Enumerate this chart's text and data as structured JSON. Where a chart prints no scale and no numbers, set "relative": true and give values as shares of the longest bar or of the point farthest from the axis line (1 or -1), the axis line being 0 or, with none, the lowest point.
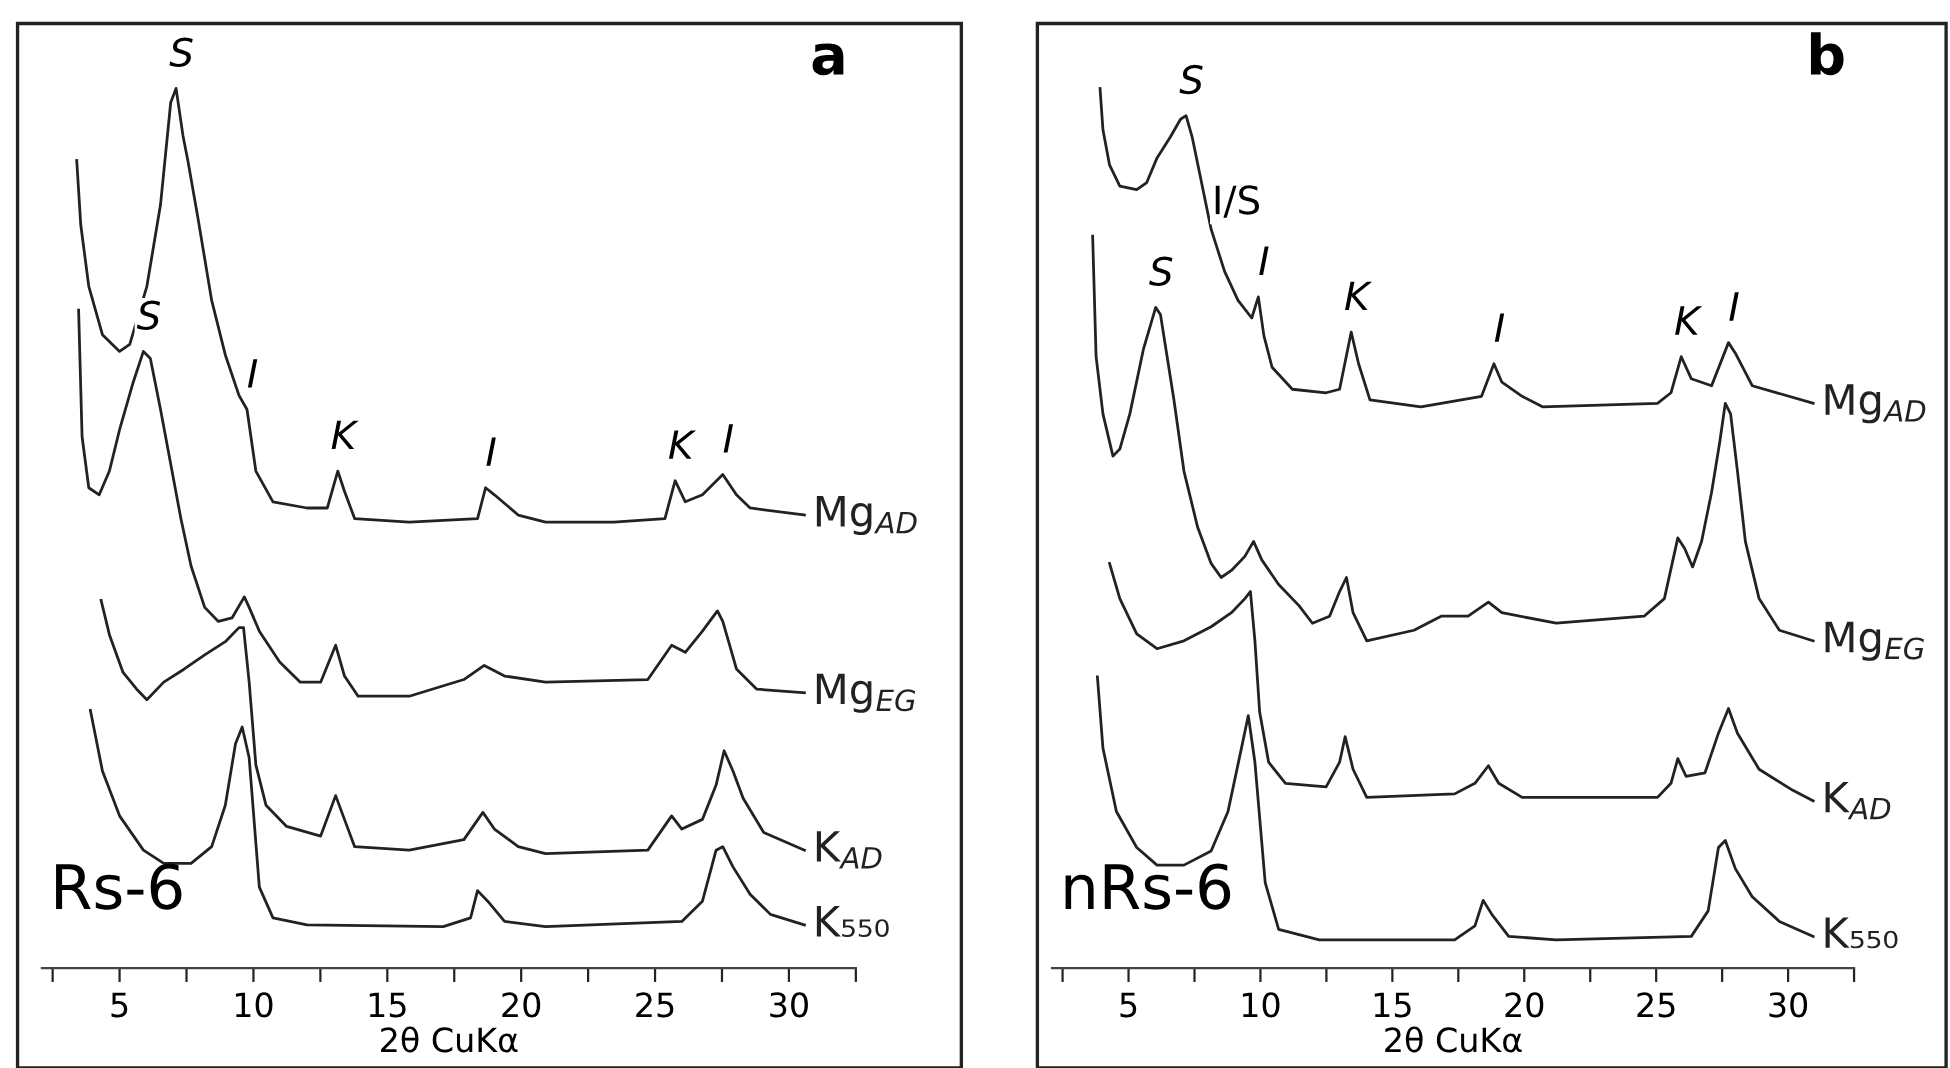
{
  "chart_data": [
    {
      "type": "line",
      "title": "a",
      "xlabel": "2θ CuKα",
      "relative": true,
      "xlim": [
        2.1,
        32.5
      ],
      "xticks": [
        {
          "value": 2.5,
          "label": null
        },
        5,
        {
          "value": 7.5,
          "label": null
        },
        10,
        {
          "value": 12.5,
          "label": null
        },
        15,
        {
          "value": 17.5,
          "label": null
        },
        20,
        {
          "value": 22.5,
          "label": null
        },
        25,
        {
          "value": 27.5,
          "label": null
        },
        30,
        {
          "value": 32.5,
          "label": null
        }
      ],
      "series": [
        {
          "name": "Mg$_{AD}$",
          "color": "#222222",
          "x": [
            3.4,
            3.55,
            3.85,
            4.36,
            5.0,
            5.38,
            6.02,
            6.53,
            6.91,
            7.11,
            7.37,
            7.55,
            7.93,
            8.44,
            8.95,
            9.46,
            9.76,
            10.09,
            10.73,
            12.0,
            12.76,
            13.15,
            13.4,
            13.78,
            15.82,
            18.37,
            18.67,
            19.0,
            19.89,
            20.91,
            23.46,
            25.37,
            25.75,
            26.13,
            26.77,
            27.53,
            28.04,
            28.55,
            30.58
          ],
          "values": [
            0.918,
            0.845,
            0.775,
            0.72,
            0.701,
            0.709,
            0.775,
            0.868,
            0.984,
            1.0,
            0.946,
            0.918,
            0.852,
            0.759,
            0.697,
            0.651,
            0.635,
            0.565,
            0.53,
            0.523,
            0.523,
            0.565,
            0.542,
            0.511,
            0.507,
            0.511,
            0.546,
            0.538,
            0.515,
            0.507,
            0.507,
            0.511,
            0.554,
            0.53,
            0.538,
            0.561,
            0.538,
            0.523,
            0.515
          ]
        },
        {
          "name": "Mg$_{EG}$",
          "color": "#222222",
          "x": [
            3.47,
            3.6,
            3.85,
            4.24,
            4.62,
            5.0,
            5.51,
            5.89,
            6.15,
            6.53,
            6.91,
            7.29,
            7.67,
            8.18,
            8.69,
            9.2,
            9.66,
            9.84,
            10.22,
            10.98,
            11.75,
            12.51,
            13.07,
            13.4,
            13.91,
            15.82,
            17.86,
            18.62,
            19.38,
            20.91,
            24.73,
            25.62,
            26.13,
            26.77,
            27.33,
            27.53,
            28.04,
            28.8,
            30.58
          ],
          "values": [
            0.748,
            0.604,
            0.546,
            0.538,
            0.565,
            0.612,
            0.666,
            0.701,
            0.693,
            0.635,
            0.573,
            0.511,
            0.457,
            0.41,
            0.394,
            0.398,
            0.422,
            0.41,
            0.383,
            0.348,
            0.325,
            0.325,
            0.367,
            0.332,
            0.309,
            0.309,
            0.328,
            0.344,
            0.332,
            0.325,
            0.328,
            0.367,
            0.359,
            0.383,
            0.406,
            0.394,
            0.34,
            0.317,
            0.313
          ]
        },
        {
          "name": "K$_{AD}$",
          "color": "#222222",
          "x": [
            4.31,
            4.62,
            5.13,
            5.64,
            6.02,
            6.65,
            7.42,
            8.18,
            8.95,
            9.46,
            9.63,
            9.84,
            10.09,
            10.47,
            11.24,
            12.51,
            13.07,
            13.4,
            13.78,
            15.82,
            17.86,
            18.57,
            19.0,
            19.89,
            20.91,
            24.73,
            25.62,
            26.0,
            26.77,
            27.28,
            27.58,
            27.91,
            28.29,
            29.06,
            30.58
          ],
          "values": [
            0.418,
            0.379,
            0.336,
            0.317,
            0.305,
            0.325,
            0.34,
            0.356,
            0.371,
            0.387,
            0.387,
            0.325,
            0.231,
            0.185,
            0.161,
            0.15,
            0.196,
            0.169,
            0.138,
            0.134,
            0.146,
            0.177,
            0.158,
            0.138,
            0.13,
            0.134,
            0.173,
            0.158,
            0.169,
            0.208,
            0.247,
            0.224,
            0.193,
            0.154,
            0.134
          ]
        },
        {
          "name": "K₅₅₀",
          "color": "#222222",
          "x": [
            3.91,
            4.36,
            5.0,
            5.89,
            6.65,
            7.67,
            8.44,
            8.95,
            9.33,
            9.58,
            9.84,
            10.22,
            10.73,
            12.0,
            17.09,
            18.11,
            18.37,
            18.75,
            19.38,
            20.91,
            26.0,
            26.77,
            27.28,
            27.53,
            27.91,
            28.55,
            29.31,
            30.58
          ],
          "values": [
            0.293,
            0.224,
            0.173,
            0.134,
            0.119,
            0.119,
            0.138,
            0.185,
            0.255,
            0.274,
            0.239,
            0.092,
            0.057,
            0.049,
            0.047,
            0.057,
            0.088,
            0.076,
            0.053,
            0.047,
            0.053,
            0.076,
            0.134,
            0.138,
            0.115,
            0.084,
            0.061,
            0.049
          ]
        }
      ],
      "annotations": [
        {
          "text": "S",
          "x": 7.11,
          "y": 1.0
        },
        {
          "text": "S",
          "x": 5.89,
          "y": 0.701
        },
        {
          "text": "I",
          "x": 9.76,
          "y": 0.635
        },
        {
          "text": "K",
          "x": 13.15,
          "y": 0.565
        },
        {
          "text": "I",
          "x": 18.67,
          "y": 0.546
        },
        {
          "text": "K",
          "x": 25.75,
          "y": 0.554
        },
        {
          "text": "I",
          "x": 27.53,
          "y": 0.561
        },
        "Rs-6"
      ]
    },
    {
      "type": "line",
      "title": "b",
      "xlabel": "2θ CuKα",
      "relative": true,
      "xlim": [
        2.1,
        32.5
      ],
      "xticks": [
        {
          "value": 2.5,
          "label": null
        },
        5,
        {
          "value": 7.5,
          "label": null
        },
        10,
        {
          "value": 12.5,
          "label": null
        },
        15,
        {
          "value": 17.5,
          "label": null
        },
        20,
        {
          "value": 22.5,
          "label": null
        },
        25,
        {
          "value": 27.5,
          "label": null
        },
        30,
        {
          "value": 32.5,
          "label": null
        }
      ],
      "series": [
        {
          "name": "Mg$_{AD}$",
          "color": "#222222",
          "x": [
            3.92,
            4.03,
            4.28,
            4.67,
            5.31,
            5.69,
            6.08,
            6.59,
            6.97,
            7.18,
            7.41,
            7.74,
            8.13,
            8.64,
            9.15,
            9.67,
            9.92,
            10.13,
            10.44,
            11.21,
            12.49,
            13.0,
            13.44,
            13.72,
            14.15,
            16.08,
            18.38,
            18.85,
            19.15,
            19.92,
            20.69,
            25.05,
            25.56,
            25.95,
            26.33,
            27.1,
            27.74,
            28.0,
            28.64,
            30.95
          ],
          "values": [
            1.0,
            0.953,
            0.913,
            0.889,
            0.885,
            0.893,
            0.921,
            0.945,
            0.965,
            0.969,
            0.945,
            0.897,
            0.84,
            0.792,
            0.759,
            0.739,
            0.763,
            0.719,
            0.683,
            0.658,
            0.654,
            0.658,
            0.723,
            0.687,
            0.646,
            0.638,
            0.65,
            0.687,
            0.666,
            0.65,
            0.638,
            0.642,
            0.654,
            0.695,
            0.67,
            0.662,
            0.711,
            0.699,
            0.662,
            0.642
          ]
        },
        {
          "name": "Mg$_{EG}$",
          "color": "#222222",
          "x": [
            3.64,
            3.77,
            4.03,
            4.41,
            4.67,
            5.05,
            5.56,
            6.03,
            6.21,
            6.72,
            7.1,
            7.62,
            8.13,
            8.51,
            8.9,
            9.41,
            9.74,
            10.05,
            10.69,
            11.46,
            11.97,
            12.62,
            13.0,
            13.26,
            13.51,
            14.03,
            15.82,
            16.85,
            17.87,
            18.64,
            19.15,
            21.21,
            24.54,
            25.31,
            25.82,
            26.08,
            26.38,
            26.72,
            27.1,
            27.41,
            27.62,
            27.82,
            28.08,
            28.38,
            28.9,
            29.67,
            30.95
          ],
          "values": [
            0.832,
            0.695,
            0.63,
            0.582,
            0.59,
            0.63,
            0.703,
            0.751,
            0.743,
            0.646,
            0.565,
            0.501,
            0.46,
            0.444,
            0.452,
            0.468,
            0.485,
            0.464,
            0.436,
            0.412,
            0.392,
            0.4,
            0.428,
            0.444,
            0.404,
            0.372,
            0.384,
            0.4,
            0.4,
            0.416,
            0.404,
            0.392,
            0.4,
            0.42,
            0.489,
            0.477,
            0.456,
            0.485,
            0.541,
            0.598,
            0.642,
            0.63,
            0.565,
            0.485,
            0.42,
            0.384,
            0.372
          ]
        },
        {
          "name": "K$_{AD}$",
          "color": "#222222",
          "x": [
            4.28,
            4.67,
            5.31,
            6.08,
            7.1,
            8.13,
            8.9,
            9.41,
            9.62,
            9.79,
            9.97,
            10.31,
            10.95,
            12.49,
            13.0,
            13.21,
            13.51,
            14.03,
            17.36,
            18.13,
            18.64,
            19.03,
            19.92,
            25.05,
            25.56,
            25.82,
            26.13,
            26.85,
            27.36,
            27.74,
            28.08,
            28.9,
            30.18,
            30.95
          ],
          "values": [
            0.46,
            0.42,
            0.38,
            0.363,
            0.372,
            0.388,
            0.404,
            0.42,
            0.428,
            0.372,
            0.291,
            0.234,
            0.21,
            0.206,
            0.234,
            0.263,
            0.226,
            0.194,
            0.198,
            0.21,
            0.23,
            0.21,
            0.194,
            0.194,
            0.21,
            0.238,
            0.218,
            0.222,
            0.267,
            0.295,
            0.267,
            0.226,
            0.202,
            0.19
          ]
        },
        {
          "name": "K₅₅₀",
          "color": "#222222",
          "x": [
            3.82,
            4.03,
            4.54,
            5.31,
            6.08,
            7.1,
            8.13,
            8.77,
            9.28,
            9.54,
            9.79,
            10.18,
            10.69,
            12.23,
            17.36,
            18.13,
            18.44,
            18.77,
            19.41,
            21.21,
            26.33,
            26.97,
            27.36,
            27.62,
            28.0,
            28.64,
            29.67,
            30.95
          ],
          "values": [
            0.331,
            0.25,
            0.178,
            0.137,
            0.117,
            0.117,
            0.133,
            0.178,
            0.25,
            0.287,
            0.234,
            0.097,
            0.044,
            0.032,
            0.032,
            0.048,
            0.077,
            0.061,
            0.036,
            0.032,
            0.036,
            0.065,
            0.137,
            0.145,
            0.113,
            0.081,
            0.053,
            0.036
          ]
        }
      ],
      "annotations": [
        {
          "text": "S",
          "x": 7.18,
          "y": 0.969
        },
        {
          "text": "I/S",
          "x": 7.74,
          "y": 0.897
        },
        {
          "text": "S",
          "x": 6.03,
          "y": 0.751
        },
        {
          "text": "I",
          "x": 9.92,
          "y": 0.763
        },
        {
          "text": "K",
          "x": 13.44,
          "y": 0.723
        },
        {
          "text": "I",
          "x": 18.85,
          "y": 0.687
        },
        {
          "text": "K",
          "x": 25.95,
          "y": 0.695
        },
        {
          "text": "I",
          "x": 27.74,
          "y": 0.711
        },
        "nRs-6"
      ]
    }
  ]
}
